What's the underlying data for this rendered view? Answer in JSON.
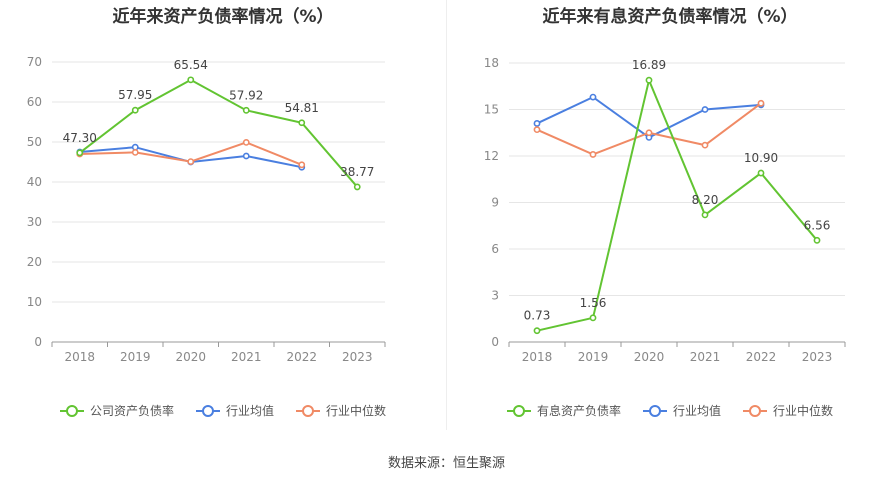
{
  "colors": {
    "company": "#62c432",
    "avg": "#4a7fe0",
    "median": "#f08a65",
    "grid": "#e6e6e6",
    "axis": "#999999"
  },
  "footer": "数据来源：恒生聚源",
  "chart_data": [
    {
      "type": "line",
      "title": "近年来资产负债率情况（%）",
      "x": [
        "2018",
        "2019",
        "2020",
        "2021",
        "2022",
        "2023"
      ],
      "ylim": [
        0,
        70
      ],
      "yticks": [
        0,
        10,
        20,
        30,
        40,
        50,
        60,
        70
      ],
      "grid": true,
      "legend_position": "bottom",
      "series": [
        {
          "name": "公司资产负债率",
          "color_key": "company",
          "labels": true,
          "values": [
            47.3,
            57.95,
            65.54,
            57.92,
            54.81,
            38.77
          ],
          "value_labels": [
            "47.30",
            "57.95",
            "65.54",
            "57.92",
            "54.81",
            "38.77"
          ]
        },
        {
          "name": "行业均值",
          "color_key": "avg",
          "labels": false,
          "values": [
            47.5,
            48.7,
            45.0,
            46.5,
            43.7,
            null
          ]
        },
        {
          "name": "行业中位数",
          "color_key": "median",
          "labels": false,
          "values": [
            47.0,
            47.4,
            45.1,
            49.9,
            44.3,
            null
          ]
        }
      ]
    },
    {
      "type": "line",
      "title": "近年来有息资产负债率情况（%）",
      "x": [
        "2018",
        "2019",
        "2020",
        "2021",
        "2022",
        "2023"
      ],
      "ylim": [
        0,
        18
      ],
      "yticks": [
        0,
        3,
        6,
        9,
        12,
        15,
        18
      ],
      "grid": true,
      "legend_position": "bottom",
      "series": [
        {
          "name": "有息资产负债率",
          "color_key": "company",
          "labels": true,
          "values": [
            0.73,
            1.56,
            16.89,
            8.2,
            10.9,
            6.56
          ],
          "value_labels": [
            "0.73",
            "1.56",
            "16.89",
            "8.20",
            "10.90",
            "6.56"
          ]
        },
        {
          "name": "行业均值",
          "color_key": "avg",
          "labels": false,
          "values": [
            14.1,
            15.8,
            13.2,
            15.0,
            15.3,
            null
          ]
        },
        {
          "name": "行业中位数",
          "color_key": "median",
          "labels": false,
          "values": [
            13.7,
            12.1,
            13.5,
            12.7,
            15.4,
            null
          ]
        }
      ]
    }
  ]
}
